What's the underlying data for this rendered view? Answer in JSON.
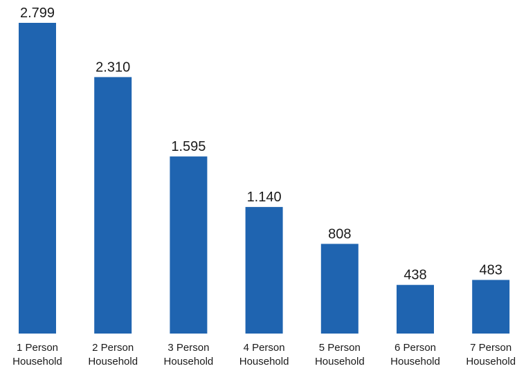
{
  "chart_data": {
    "type": "bar",
    "categories": [
      [
        "1 Person",
        "Household"
      ],
      [
        "2 Person",
        "Household"
      ],
      [
        "3 Person",
        "Household"
      ],
      [
        "4 Person",
        "Household"
      ],
      [
        "5 Person",
        "Household"
      ],
      [
        "6 Person",
        "Household"
      ],
      [
        "7 Person",
        "Household"
      ]
    ],
    "values": [
      2799,
      2310,
      1595,
      1140,
      808,
      438,
      483
    ],
    "value_labels": [
      "2.799",
      "2.310",
      "1.595",
      "1.140",
      "808",
      "438",
      "483"
    ],
    "title": "",
    "xlabel": "",
    "ylabel": "",
    "grid": false,
    "legend": "none",
    "bar_color": "#1f64b0"
  }
}
